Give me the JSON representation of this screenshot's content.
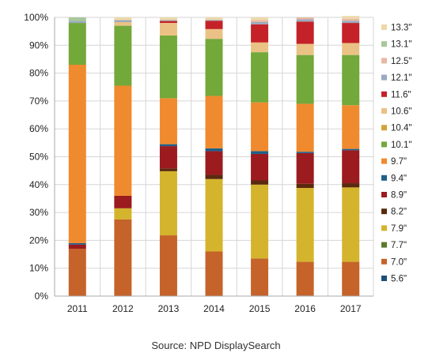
{
  "chart_data": {
    "type": "bar",
    "stacked": true,
    "categories": [
      "2011",
      "2012",
      "2013",
      "2014",
      "2015",
      "2016",
      "2017"
    ],
    "ylim": [
      0,
      100
    ],
    "yticks": [
      0,
      10,
      20,
      30,
      40,
      50,
      60,
      70,
      80,
      90,
      100
    ],
    "ytick_labels": [
      "0%",
      "10%",
      "20%",
      "30%",
      "40%",
      "50%",
      "60%",
      "70%",
      "80%",
      "90%",
      "100%"
    ],
    "grid": true,
    "legend_position": "right",
    "series": [
      {
        "name": "5.6\"",
        "color": "#1f4e79",
        "values": [
          0.0,
          0.0,
          0.0,
          0.0,
          0.2,
          0.2,
          0.0
        ]
      },
      {
        "name": "7.0\"",
        "color": "#c5632a",
        "values": [
          17.0,
          27.5,
          21.8,
          16.0,
          13.3,
          12.1,
          12.3
        ]
      },
      {
        "name": "7.7\"",
        "color": "#5a7a2a",
        "values": [
          0.0,
          0.0,
          0.0,
          0.0,
          0.0,
          0.0,
          0.0
        ]
      },
      {
        "name": "7.9\"",
        "color": "#d4b42c",
        "values": [
          0.0,
          4.0,
          23.0,
          26.0,
          26.5,
          26.5,
          26.7
        ]
      },
      {
        "name": "8.2\"",
        "color": "#5a2a0e",
        "values": [
          0.0,
          0.0,
          1.0,
          1.5,
          1.5,
          1.5,
          1.5
        ]
      },
      {
        "name": "8.9\"",
        "color": "#9b1b1e",
        "values": [
          1.5,
          4.5,
          8.0,
          8.5,
          9.5,
          11.0,
          11.8
        ]
      },
      {
        "name": "9.4\"",
        "color": "#1f5f8b",
        "values": [
          0.5,
          0.0,
          0.7,
          1.0,
          1.0,
          0.5,
          0.5
        ]
      },
      {
        "name": "9.7\"",
        "color": "#f08a2e",
        "values": [
          64.0,
          39.5,
          16.5,
          18.8,
          17.5,
          17.2,
          15.7
        ]
      },
      {
        "name": "10.1\"",
        "color": "#73a83a",
        "values": [
          15.0,
          21.5,
          22.5,
          20.5,
          18.0,
          17.5,
          18.0
        ]
      },
      {
        "name": "10.4\"",
        "color": "#cfa53a",
        "values": [
          0.0,
          0.0,
          0.0,
          0.0,
          0.0,
          0.0,
          0.0
        ]
      },
      {
        "name": "10.6\"",
        "color": "#ebc285",
        "values": [
          0.0,
          1.3,
          4.5,
          3.5,
          3.5,
          4.0,
          4.3
        ]
      },
      {
        "name": "11.6\"",
        "color": "#c42228",
        "values": [
          0.0,
          0.0,
          0.7,
          3.0,
          6.5,
          8.0,
          7.2
        ]
      },
      {
        "name": "12.1\"",
        "color": "#9aaabf",
        "values": [
          0.7,
          0.7,
          0.3,
          0.3,
          0.8,
          0.8,
          0.8
        ]
      },
      {
        "name": "12.5\"",
        "color": "#e9b8a3",
        "values": [
          0.0,
          0.0,
          0.0,
          0.0,
          0.7,
          0.7,
          0.7
        ]
      },
      {
        "name": "13.1\"",
        "color": "#a8c79a",
        "values": [
          1.3,
          0.0,
          0.0,
          0.0,
          0.0,
          0.0,
          0.0
        ]
      },
      {
        "name": "13.3\"",
        "color": "#ecd9a8",
        "values": [
          0.0,
          1.0,
          1.0,
          0.9,
          1.0,
          0.0,
          1.0
        ]
      }
    ]
  },
  "source": "Source: NPD DisplaySearch"
}
